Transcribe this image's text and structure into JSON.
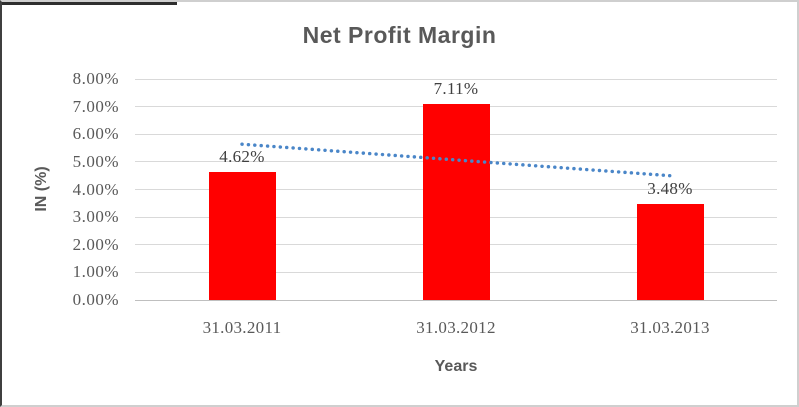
{
  "chart_data": {
    "type": "bar",
    "title": "Net Profit Margin",
    "xlabel": "Years",
    "ylabel": "IN (%)",
    "categories": [
      "31.03.2011",
      "31.03.2012",
      "31.03.2013"
    ],
    "values": [
      4.62,
      7.11,
      3.48
    ],
    "data_labels": [
      "4.62%",
      "7.11%",
      "3.48%"
    ],
    "ylim": [
      0,
      8
    ],
    "ytick_labels": [
      "0.00%",
      "1.00%",
      "2.00%",
      "3.00%",
      "4.00%",
      "5.00%",
      "6.00%",
      "7.00%",
      "8.00%"
    ],
    "grid": "horizontal",
    "legend": "none",
    "bar_color": "#FF0000",
    "gridline_color": "#D9D9D9",
    "axis_line_color": "#BFBFBF",
    "text_color": "#595959",
    "data_label_color": "#404040",
    "trendline": {
      "type": "linear",
      "style": "dotted",
      "color": "#4A86C8"
    }
  }
}
